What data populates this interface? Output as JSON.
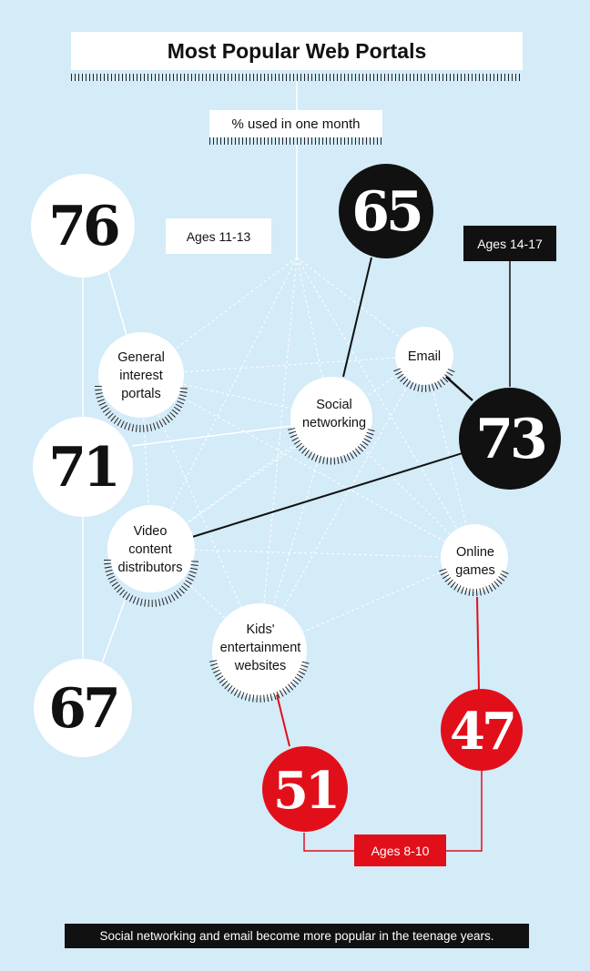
{
  "title": "Most Popular Web Portals",
  "subtitle": "% used in one month",
  "age_groups": {
    "ages_11_13": {
      "label": "Ages 11-13",
      "color": "#ffffff"
    },
    "ages_14_17": {
      "label": "Ages 14-17",
      "color": "#111111"
    },
    "ages_8_10": {
      "label": "Ages 8-10",
      "color": "#e10f1a"
    }
  },
  "categories": {
    "general": [
      "General",
      "interest",
      "portals"
    ],
    "social": [
      "Social",
      "networking"
    ],
    "email": [
      "Email"
    ],
    "video": [
      "Video",
      "content",
      "distributors"
    ],
    "games": [
      "Online",
      "games"
    ],
    "kids": [
      "Kids'",
      "entertainment",
      "websites"
    ]
  },
  "values": {
    "v76": {
      "text": "76",
      "group": "ages_11_13",
      "category": "general"
    },
    "v71": {
      "text": "71",
      "group": "ages_11_13",
      "category": "social"
    },
    "v67": {
      "text": "67",
      "group": "ages_11_13",
      "category": "video"
    },
    "v65": {
      "text": "65",
      "group": "ages_14_17",
      "category": "social"
    },
    "v73": {
      "text": "73",
      "group": "ages_14_17",
      "category": "email"
    },
    "v51": {
      "text": "51",
      "group": "ages_8_10",
      "category": "kids"
    },
    "v47": {
      "text": "47",
      "group": "ages_8_10",
      "category": "games"
    }
  },
  "footer": "Social networking and email become more popular in the teenage years."
}
